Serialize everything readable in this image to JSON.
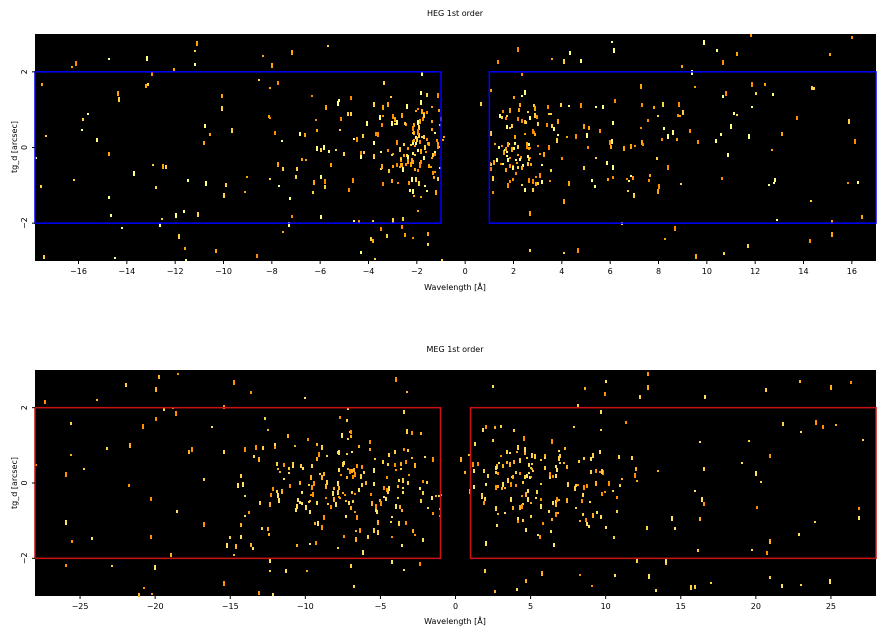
{
  "figure": {
    "background": "#ffffff",
    "plot_background": "#000000"
  },
  "chart_data": [
    {
      "type": "heatmap",
      "title": "HEG 1st order",
      "xlabel": "Wavelength [Å]",
      "ylabel": "tg_d [arcsec]",
      "xlim": [
        -17.8,
        17.0
      ],
      "ylim": [
        -3.0,
        3.0
      ],
      "xticks": [
        -16,
        -14,
        -12,
        -10,
        -8,
        -6,
        -4,
        -2,
        0,
        2,
        4,
        6,
        8,
        10,
        12,
        14,
        16
      ],
      "yticks": [
        -2,
        0,
        2
      ],
      "region_color": "#0000ff",
      "regions": [
        {
          "x": [
            -17.8,
            -1.0
          ],
          "y": [
            -2.0,
            2.0
          ]
        },
        {
          "x": [
            1.0,
            17.0
          ],
          "y": [
            -2.0,
            2.0
          ]
        }
      ],
      "point_colors": [
        "#ff8c00",
        "#ffa500",
        "#ffd040",
        "#ffff80"
      ],
      "clusters": [
        {
          "x": [
            -17.8,
            -1.0
          ],
          "y": [
            -3.0,
            3.0
          ],
          "n": 110,
          "sx": 0,
          "sy": 0
        },
        {
          "x": [
            -8.0,
            -1.0
          ],
          "y": [
            -1.2,
            1.2
          ],
          "n": 70,
          "sx": 0,
          "sy": 0
        },
        {
          "center": [
            -2.0,
            0.0
          ],
          "sx": 0.6,
          "sy": 0.6,
          "n": 90
        },
        {
          "center": [
            2.0,
            0.0
          ],
          "sx": 0.7,
          "sy": 0.6,
          "n": 90
        },
        {
          "x": [
            1.5,
            9.0
          ],
          "y": [
            -1.2,
            1.2
          ],
          "n": 70,
          "sx": 0,
          "sy": 0
        },
        {
          "x": [
            1.0,
            17.0
          ],
          "y": [
            -3.0,
            3.0
          ],
          "n": 90,
          "sx": 0,
          "sy": 0
        }
      ]
    },
    {
      "type": "heatmap",
      "title": "MEG 1st order",
      "xlabel": "Wavelength [Å]",
      "ylabel": "tg_d [arcsec]",
      "xlim": [
        -28.0,
        28.0
      ],
      "ylim": [
        -3.0,
        3.0
      ],
      "xticks": [
        -25,
        -20,
        -15,
        -10,
        -5,
        0,
        5,
        10,
        15,
        20,
        25
      ],
      "yticks": [
        -2,
        0,
        2
      ],
      "region_color": "#cc1111",
      "regions": [
        {
          "x": [
            -28.0,
            -1.0
          ],
          "y": [
            -2.0,
            2.0
          ]
        },
        {
          "x": [
            1.0,
            28.0
          ],
          "y": [
            -2.0,
            2.0
          ]
        }
      ],
      "point_colors": [
        "#ff9000",
        "#ffb020",
        "#ffd040",
        "#ffe060"
      ],
      "clusters": [
        {
          "x": [
            -28.0,
            -1.0
          ],
          "y": [
            -3.0,
            3.0
          ],
          "n": 80,
          "sx": 0,
          "sy": 0
        },
        {
          "center": [
            -8.0,
            0.0
          ],
          "sx": 4.0,
          "sy": 0.8,
          "n": 200
        },
        {
          "center": [
            5.0,
            0.0
          ],
          "sx": 3.5,
          "sy": 0.7,
          "n": 180
        },
        {
          "x": [
            1.0,
            28.0
          ],
          "y": [
            -3.0,
            3.0
          ],
          "n": 80,
          "sx": 0,
          "sy": 0
        }
      ]
    }
  ]
}
